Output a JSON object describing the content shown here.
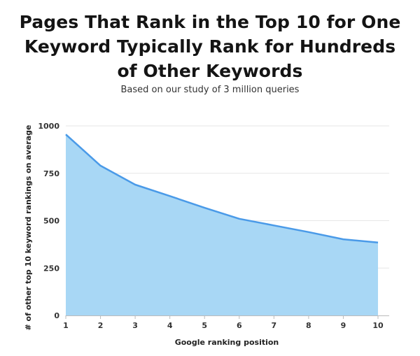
{
  "chart_data": {
    "type": "area",
    "title_lines": [
      "Pages That Rank in the Top 10 for One",
      "Keyword Typically Rank for Hundreds",
      "of Other Keywords"
    ],
    "subtitle": "Based on our study of 3 million queries",
    "xlabel": "Google ranking position",
    "ylabel": "# of other top 10 keyword rankings on average",
    "x": [
      1,
      2,
      3,
      4,
      5,
      6,
      7,
      8,
      9,
      10
    ],
    "x_tick_labels": [
      "1",
      "2",
      "3",
      "4",
      "5",
      "6",
      "7",
      "8",
      "9",
      "10"
    ],
    "values": [
      955,
      790,
      690,
      630,
      568,
      510,
      475,
      440,
      402,
      385
    ],
    "y_ticks": [
      0,
      250,
      500,
      750,
      1000
    ],
    "y_tick_labels": [
      "0",
      "250",
      "500",
      "750",
      "1000"
    ],
    "ylim": [
      0,
      1000
    ],
    "xlim": [
      1,
      10
    ],
    "grid": "horizontal",
    "colors": {
      "line": "#4a9ae8",
      "fill": "#a8d7f5",
      "grid": "#e6e6e6",
      "axis": "#bbbbbb"
    }
  }
}
